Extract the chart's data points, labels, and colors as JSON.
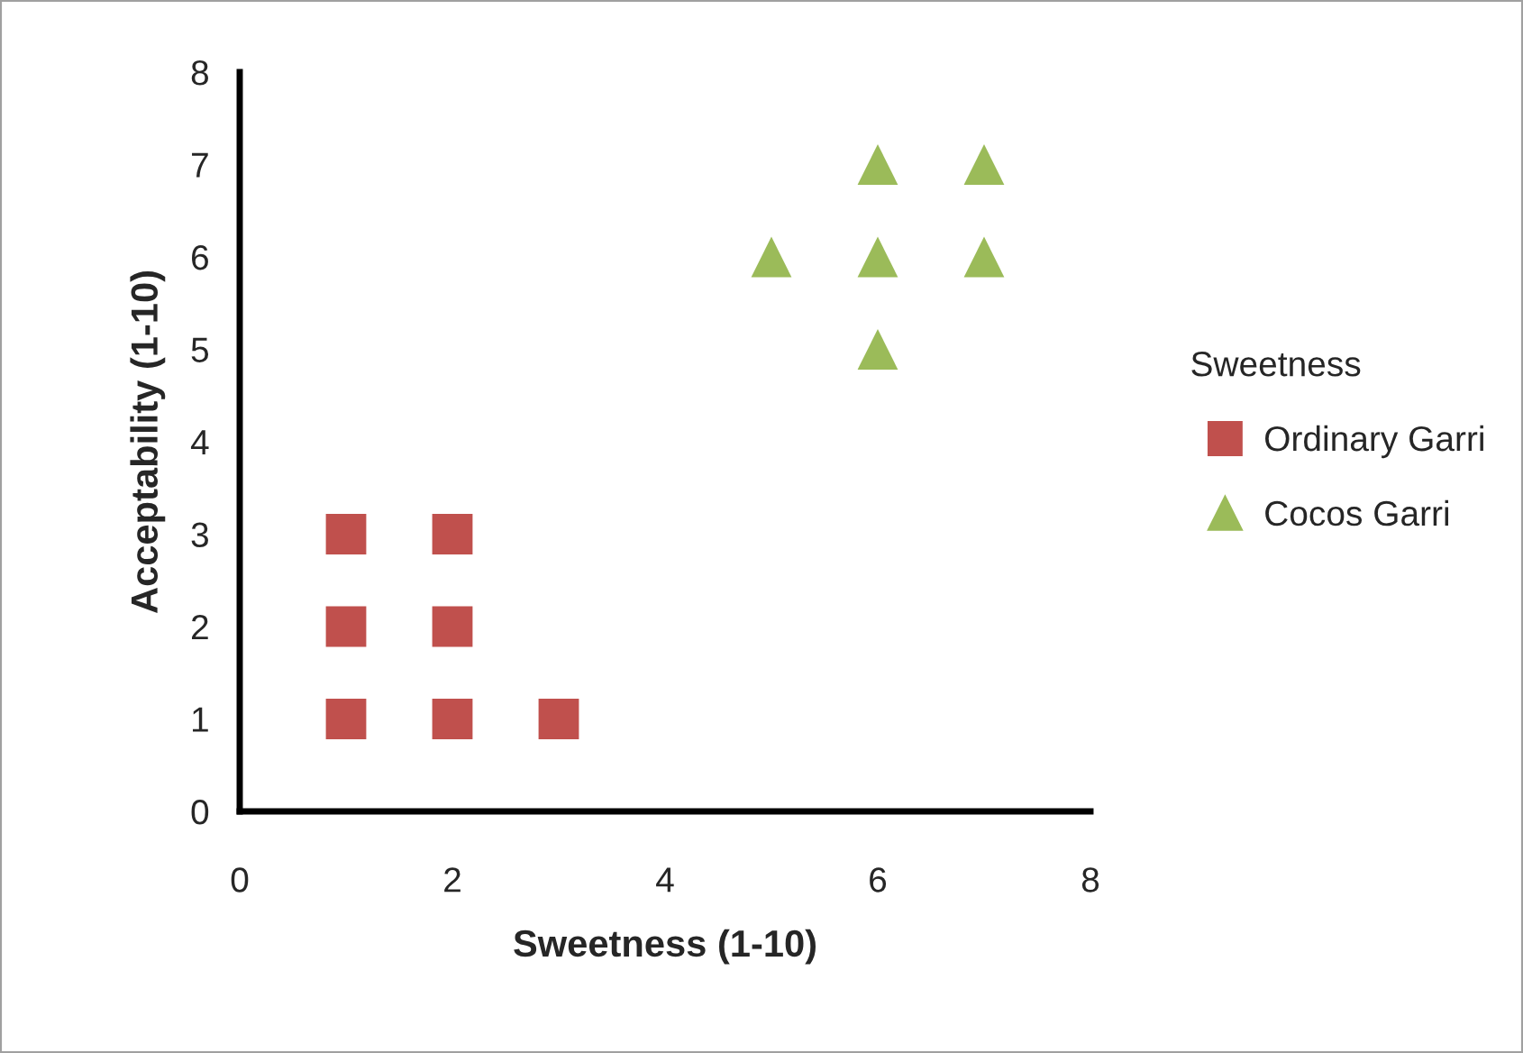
{
  "chart_data": {
    "type": "scatter",
    "xlabel": "Sweetness (1-10)",
    "ylabel": "Acceptability (1-10)",
    "legend_title": "Sweetness",
    "xlim": [
      0,
      8
    ],
    "xticks": [
      0,
      2,
      4,
      6,
      8
    ],
    "ylim": [
      0,
      8
    ],
    "yticks": [
      0,
      1,
      2,
      3,
      4,
      5,
      6,
      7,
      8
    ],
    "grid": false,
    "legend": "right",
    "series": [
      {
        "name": "Ordinary Garri",
        "color": "#c0504d",
        "marker": "square",
        "x": [
          1,
          2,
          1,
          2,
          1,
          2,
          3
        ],
        "values": [
          3,
          3,
          2,
          2,
          1,
          1,
          1
        ]
      },
      {
        "name": "Cocos Garri",
        "color": "#9bbb59",
        "marker": "triangle",
        "x": [
          5,
          6,
          7,
          6,
          7,
          6
        ],
        "values": [
          6,
          7,
          7,
          6,
          6,
          5
        ]
      }
    ]
  }
}
